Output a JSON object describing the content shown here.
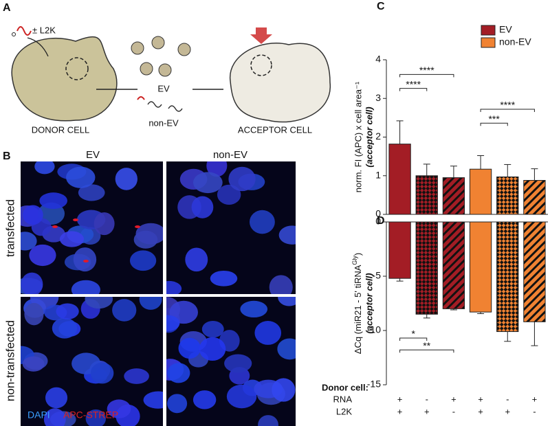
{
  "panel_a": {
    "letter": "A",
    "reagent": "± L2K",
    "donor": "DONOR CELL",
    "ev": "EV",
    "non_ev": "non-EV",
    "acceptor": "ACCEPTOR  CELL"
  },
  "panel_b": {
    "letter": "B",
    "columns": [
      "EV",
      "non-EV"
    ],
    "rows": [
      "transfected",
      "non-transfected"
    ],
    "stains": [
      "DAPI",
      "APC-STREP"
    ]
  },
  "chart_data": [
    {
      "type": "bar",
      "letter": "C",
      "ylabel": "norm. FI (APC) x cell area⁻¹",
      "ylabel2": "(acceptor cell)",
      "categories": [
        null,
        null,
        null,
        null,
        null,
        null
      ],
      "series": [
        {
          "name": "EV",
          "color": "#a31d25",
          "values": [
            1.82,
            1.0,
            0.95,
            null,
            null,
            null
          ],
          "errors": [
            0.6,
            0.3,
            0.3,
            null,
            null,
            null
          ]
        },
        {
          "name": "non-EV",
          "color": "#f08232",
          "values": [
            null,
            null,
            null,
            1.17,
            0.97,
            0.88
          ],
          "errors": [
            null,
            null,
            null,
            0.35,
            0.32,
            0.3
          ]
        }
      ],
      "patterns": [
        "solid",
        "checker",
        "stripes",
        "solid",
        "checker",
        "stripes"
      ],
      "ylim": [
        0,
        4
      ],
      "yticks": [
        0,
        1,
        2,
        3,
        4
      ],
      "legend": "top-right",
      "sig_side": "above",
      "significance": [
        {
          "text": "****",
          "from": 0,
          "to": 1
        },
        {
          "text": "****",
          "from": 0,
          "to": 2
        },
        {
          "text": "***",
          "from": 3,
          "to": 4
        },
        {
          "text": "****",
          "from": 3,
          "to": 5
        }
      ]
    },
    {
      "type": "bar",
      "letter": "D",
      "ylabel_parts": [
        "ΔCq (miR21 - 5' tiRNA",
        "Gly",
        ")"
      ],
      "ylabel2": "(acceptor cell)",
      "categories": [
        null,
        null,
        null,
        null,
        null,
        null
      ],
      "series": [
        {
          "name": "EV",
          "color": "#a31d25",
          "values": [
            -5.2,
            -8.5,
            -8.0,
            null,
            null,
            null
          ],
          "errors": [
            0.25,
            0.35,
            0.1,
            null,
            null,
            null
          ]
        },
        {
          "name": "non-EV",
          "color": "#f08232",
          "values": [
            null,
            null,
            null,
            -8.3,
            -10.1,
            -9.2
          ],
          "errors": [
            null,
            null,
            null,
            0.15,
            0.9,
            2.2
          ]
        }
      ],
      "patterns": [
        "solid",
        "checker",
        "stripes",
        "solid",
        "checker",
        "stripes"
      ],
      "ylim": [
        -15,
        0
      ],
      "yticks": [
        -15,
        -10,
        -5,
        0
      ],
      "sig_side": "below",
      "significance": [
        {
          "text": "*",
          "from": 0,
          "to": 1
        },
        {
          "text": "**",
          "from": 0,
          "to": 2
        }
      ]
    }
  ],
  "donor": {
    "title": "Donor cell:",
    "rows": [
      {
        "label": "RNA",
        "values": [
          "+",
          "-",
          "+",
          "+",
          "-",
          "+"
        ]
      },
      {
        "label": "L2K",
        "values": [
          "+",
          "+",
          "-",
          "+",
          "+",
          "-"
        ]
      }
    ]
  }
}
